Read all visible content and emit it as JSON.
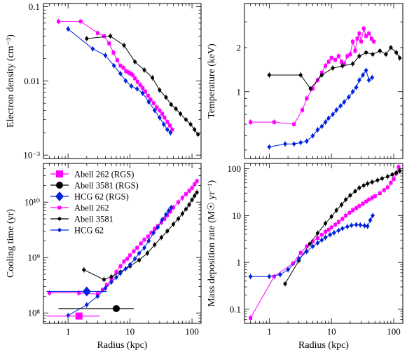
{
  "colors": {
    "abell262": "#ff00ff",
    "abell3581": "#000000",
    "hcg62": "#0022dd"
  },
  "figure": {
    "legend": [
      {
        "label": "Abell 262 (RGS)",
        "series_key": "abell262_rgs",
        "marker": "square",
        "color": "#ff00ff"
      },
      {
        "label": "Abell 3581 (RGS)",
        "series_key": "abell3581_rgs",
        "marker": "circle",
        "color": "#000000"
      },
      {
        "label": "HCG 62 (RGS)",
        "series_key": "hcg62_rgs",
        "marker": "diamond",
        "color": "#0022dd"
      },
      {
        "label": "Abell 262",
        "series_key": "abell262",
        "marker": "small-square",
        "color": "#ff00ff"
      },
      {
        "label": "Abell 3581",
        "series_key": "abell3581",
        "marker": "small-circle",
        "color": "#000000"
      },
      {
        "label": "HCG 62",
        "series_key": "hcg62",
        "marker": "small-diamond",
        "color": "#0022dd"
      }
    ]
  },
  "chart_data": [
    {
      "id": "density",
      "type": "line",
      "xlabel": "",
      "ylabel": "Electron density (cm⁻³)",
      "xscale": "log",
      "yscale": "log",
      "xlim": [
        0.4,
        140
      ],
      "ylim": [
        0.0009,
        0.11
      ],
      "xticks": [],
      "xtick_labels": [],
      "yticks": [
        0.001,
        0.01,
        0.1
      ],
      "ytick_labels": [
        "10⁻³",
        "0.01",
        "0.1"
      ],
      "series": [
        {
          "key": "abell262",
          "color": "#ff00ff",
          "x": [
            0.7,
            1.6,
            3.0,
            3.8,
            4.6,
            5.4,
            6.2,
            7.0,
            7.8,
            8.6,
            9.4,
            10.2,
            11.0,
            12.0,
            13.2,
            14.6,
            16.0,
            17.6,
            19.5,
            21.5,
            24,
            27,
            30,
            33,
            36,
            40,
            44,
            48
          ],
          "y": [
            0.063,
            0.063,
            0.044,
            0.04,
            0.032,
            0.024,
            0.019,
            0.016,
            0.015,
            0.0135,
            0.013,
            0.0125,
            0.012,
            0.0108,
            0.0097,
            0.0088,
            0.008,
            0.0072,
            0.0063,
            0.0056,
            0.005,
            0.0044,
            0.004,
            0.0036,
            0.0032,
            0.0028,
            0.0025,
            0.0022
          ]
        },
        {
          "key": "abell3581",
          "color": "#000000",
          "x": [
            2.0,
            4.8,
            8.0,
            12,
            17,
            23,
            30,
            38,
            46,
            55,
            65,
            80,
            95,
            110,
            125
          ],
          "y": [
            0.037,
            0.04,
            0.03,
            0.018,
            0.014,
            0.011,
            0.0075,
            0.006,
            0.0048,
            0.0042,
            0.0036,
            0.003,
            0.0026,
            0.0022,
            0.0019
          ]
        },
        {
          "key": "hcg62",
          "color": "#0022dd",
          "x": [
            1.0,
            2.5,
            4.0,
            5.5,
            7.0,
            8.5,
            10.5,
            13,
            16,
            20,
            25,
            30,
            35,
            40,
            45
          ],
          "y": [
            0.05,
            0.027,
            0.022,
            0.016,
            0.0125,
            0.01,
            0.0085,
            0.0078,
            0.0068,
            0.0052,
            0.004,
            0.0032,
            0.0026,
            0.0022,
            0.002
          ]
        }
      ]
    },
    {
      "id": "temperature",
      "type": "line",
      "xlabel": "",
      "ylabel": "Temperature (keV)",
      "xscale": "log",
      "yscale": "log",
      "xlim": [
        0.4,
        140
      ],
      "ylim": [
        0.35,
        4.0
      ],
      "xticks": [],
      "xtick_labels": [],
      "yticks": [
        1,
        2
      ],
      "ytick_labels": [
        "1",
        "2"
      ],
      "series": [
        {
          "key": "abell262",
          "color": "#ff00ff",
          "x": [
            0.5,
            1.2,
            2.5,
            3.4,
            4.0,
            5.0,
            6.0,
            7.0,
            8.0,
            9.0,
            10.0,
            11.5,
            13,
            14.5,
            16,
            18,
            20,
            22,
            24,
            26,
            28,
            30,
            33,
            36,
            40,
            44,
            48
          ],
          "y": [
            0.62,
            0.62,
            0.6,
            0.75,
            0.9,
            1.05,
            1.2,
            1.35,
            1.5,
            1.6,
            1.7,
            1.65,
            1.75,
            1.6,
            1.55,
            1.75,
            1.8,
            2.2,
            1.9,
            2.3,
            2.5,
            2.2,
            2.7,
            2.4,
            2.5,
            2.3,
            2.2
          ]
        },
        {
          "key": "abell3581",
          "color": "#000000",
          "x": [
            1.0,
            3.2,
            4.6,
            7.0,
            10.5,
            15,
            22,
            28,
            36,
            46,
            60,
            75,
            90,
            110,
            125
          ],
          "y": [
            1.3,
            1.3,
            1.05,
            1.3,
            1.45,
            1.5,
            1.55,
            1.75,
            1.85,
            1.8,
            1.9,
            1.8,
            2.0,
            1.85,
            1.7
          ]
        },
        {
          "key": "hcg62",
          "color": "#0022dd",
          "x": [
            1.0,
            1.8,
            2.5,
            3.2,
            4.0,
            5.0,
            6.0,
            7.0,
            8.0,
            9.0,
            10.5,
            12,
            14,
            16,
            19,
            22,
            25,
            28,
            32,
            36,
            40,
            45
          ],
          "y": [
            0.42,
            0.44,
            0.44,
            0.45,
            0.46,
            0.5,
            0.55,
            0.58,
            0.62,
            0.66,
            0.7,
            0.75,
            0.8,
            0.85,
            0.92,
            1.0,
            1.07,
            1.2,
            1.3,
            1.4,
            1.2,
            1.25
          ]
        }
      ]
    },
    {
      "id": "cooling",
      "type": "line",
      "xlabel": "Radius (kpc)",
      "ylabel": "Cooling time (yr)",
      "xscale": "log",
      "yscale": "log",
      "xlim": [
        0.4,
        140
      ],
      "ylim": [
        65000000.0,
        50000000000.0
      ],
      "xticks": [
        1,
        10,
        100
      ],
      "xtick_labels": [
        "1",
        "10",
        "100"
      ],
      "yticks": [
        100000000.0,
        1000000000.0,
        10000000000.0
      ],
      "ytick_labels": [
        "10⁸",
        "10⁹",
        "10¹⁰"
      ],
      "series": [
        {
          "key": "abell262",
          "color": "#ff00ff",
          "x": [
            0.5,
            1.5,
            3.0,
            3.6,
            4.2,
            5.0,
            6.0,
            7.0,
            8.0,
            9.0,
            10.0,
            11.5,
            13,
            15,
            17,
            19.5,
            22,
            25,
            28,
            32,
            36,
            40,
            45,
            50,
            60,
            70,
            80,
            90,
            100,
            110,
            120
          ],
          "y": [
            230000000.0,
            230000000.0,
            220000000.0,
            260000000.0,
            320000000.0,
            400000000.0,
            550000000.0,
            700000000.0,
            850000000.0,
            950000000.0,
            1100000000.0,
            1300000000.0,
            1500000000.0,
            1800000000.0,
            2100000000.0,
            2400000000.0,
            2800000000.0,
            3300000000.0,
            3700000000.0,
            4300000000.0,
            5000000000.0,
            5800000000.0,
            6800000000.0,
            8000000000.0,
            10000000000.0,
            12000000000.0,
            14000000000.0,
            16000000000.0,
            18000000000.0,
            21000000000.0,
            24000000000.0
          ]
        },
        {
          "key": "abell3581",
          "color": "#000000",
          "x": [
            1.8,
            3.8,
            5.0,
            7.0,
            10,
            14,
            19,
            25,
            32,
            40,
            50,
            60,
            70,
            80,
            90,
            100,
            110,
            120
          ],
          "y": [
            600000000.0,
            400000000.0,
            450000000.0,
            550000000.0,
            700000000.0,
            900000000.0,
            1200000000.0,
            1700000000.0,
            2300000000.0,
            3000000000.0,
            4000000000.0,
            5000000000.0,
            6200000000.0,
            7500000000.0,
            9000000000.0,
            11000000000.0,
            13000000000.0,
            15000000000.0
          ]
        },
        {
          "key": "hcg62",
          "color": "#0022dd",
          "x": [
            1.0,
            2.0,
            3.0,
            4.0,
            5.0,
            6.0,
            7.0,
            8.5,
            10,
            12,
            14,
            17,
            20,
            24,
            28,
            33,
            38,
            42,
            46
          ],
          "y": [
            90000000.0,
            140000000.0,
            200000000.0,
            280000000.0,
            360000000.0,
            440000000.0,
            520000000.0,
            630000000.0,
            750000000.0,
            950000000.0,
            1200000000.0,
            1500000000.0,
            2000000000.0,
            2800000000.0,
            3500000000.0,
            4800000000.0,
            6000000000.0,
            7000000000.0,
            8000000000.0
          ]
        },
        {
          "key": "abell262_rgs",
          "color": "#ff00ff",
          "x": [
            1.5
          ],
          "y": [
            88000000.0
          ],
          "x_err": [
            [
              0.45,
              3.2
            ]
          ]
        },
        {
          "key": "abell3581_rgs",
          "color": "#000000",
          "x": [
            6.0
          ],
          "y": [
            120000000.0
          ],
          "x_err": [
            [
              0.7,
              11.5
            ]
          ]
        },
        {
          "key": "hcg62_rgs",
          "color": "#0022dd",
          "x": [
            2.0
          ],
          "y": [
            245000000.0
          ],
          "x_err": [
            [
              0.45,
              4.2
            ]
          ]
        }
      ]
    },
    {
      "id": "massdep",
      "type": "line",
      "xlabel": "Radius (kpc)",
      "ylabel": "Mass deposition rate (M☉ yr⁻¹)",
      "xscale": "log",
      "yscale": "log",
      "xlim": [
        0.4,
        140
      ],
      "ylim": [
        0.05,
        130
      ],
      "xticks": [
        1,
        10,
        100
      ],
      "xtick_labels": [
        "1",
        "10",
        "100"
      ],
      "yticks": [
        0.1,
        1,
        10,
        100
      ],
      "ytick_labels": [
        "0.1",
        "1",
        "10",
        "100"
      ],
      "series": [
        {
          "key": "abell262",
          "color": "#ff00ff",
          "x": [
            0.5,
            1.2,
            2.4,
            3.2,
            4.0,
            5.0,
            6.0,
            7.0,
            8.0,
            9.0,
            10.0,
            11.5,
            13,
            15,
            17,
            19.5,
            22,
            25,
            28,
            32,
            36,
            40,
            45,
            50,
            60,
            70,
            80,
            90,
            100,
            110,
            120
          ],
          "y": [
            0.065,
            0.5,
            0.95,
            1.6,
            2.2,
            2.8,
            3.3,
            3.9,
            4.5,
            5.0,
            5.6,
            6.4,
            7.3,
            8.5,
            10,
            11.5,
            13,
            14.5,
            16,
            18,
            20,
            22,
            24,
            26,
            30,
            35,
            40,
            50,
            60,
            80,
            110
          ]
        },
        {
          "key": "abell3581",
          "color": "#000000",
          "x": [
            1.8,
            3.0,
            4.5,
            6.0,
            8.0,
            10,
            12,
            14.5,
            17,
            20,
            24,
            28,
            33,
            38,
            45,
            55,
            65,
            80,
            95,
            110,
            125
          ],
          "y": [
            0.35,
            1.1,
            2.5,
            4.2,
            6.8,
            9.5,
            13,
            17,
            22,
            27,
            33,
            39,
            44,
            48,
            52,
            57,
            62,
            68,
            75,
            82,
            90
          ]
        },
        {
          "key": "hcg62",
          "color": "#0022dd",
          "x": [
            0.5,
            1.0,
            1.5,
            2.0,
            3.0,
            4.0,
            5.0,
            6.0,
            7.0,
            8.0,
            9.5,
            11,
            13,
            15,
            18,
            21,
            25,
            29,
            34,
            38,
            42,
            46
          ],
          "y": [
            0.5,
            0.5,
            0.55,
            0.7,
            1.2,
            1.7,
            2.2,
            2.6,
            3.0,
            3.4,
            3.9,
            4.3,
            4.8,
            5.3,
            5.8,
            6.2,
            6.4,
            6.3,
            6.1,
            5.9,
            8.0,
            10
          ]
        }
      ]
    }
  ]
}
